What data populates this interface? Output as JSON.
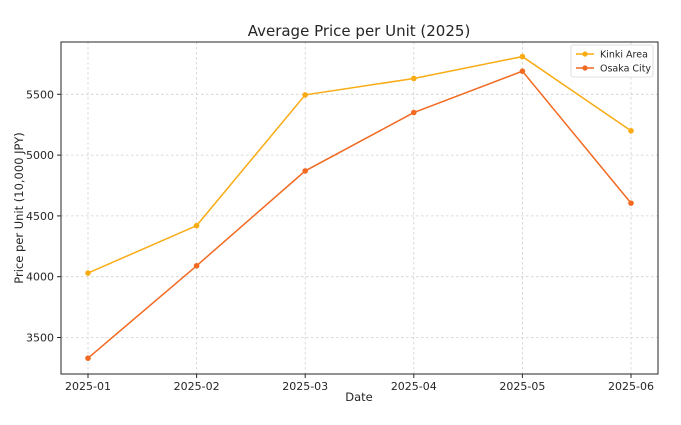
{
  "chart_data": {
    "type": "line",
    "title": "Average Price per Unit (2025)",
    "xlabel": "Date",
    "ylabel": "Price per Unit (10,000 JPY)",
    "categories": [
      "2025-01",
      "2025-02",
      "2025-03",
      "2025-04",
      "2025-05",
      "2025-06"
    ],
    "ylim": [
      3200,
      5930
    ],
    "yticks": [
      3500,
      4000,
      4500,
      5000,
      5500
    ],
    "grid": true,
    "legend_position": "top-right",
    "series": [
      {
        "name": "Kinki Area",
        "color": "#f9ab14",
        "values": [
          4030,
          4420,
          5495,
          5630,
          5810,
          5200
        ]
      },
      {
        "name": "Osaka City",
        "color": "#f26a21",
        "values": [
          3330,
          4090,
          4870,
          5350,
          5690,
          4605
        ]
      }
    ]
  }
}
